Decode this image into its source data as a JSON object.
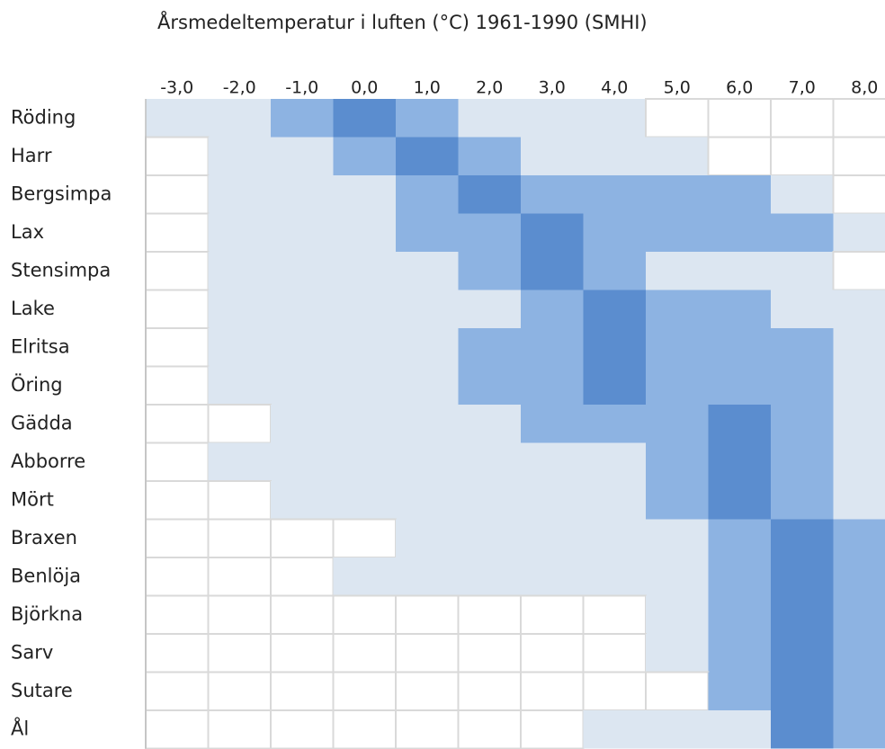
{
  "chart_data": {
    "type": "heatmap",
    "title": "Årsmedeltemperatur i luften (°C) 1961-1990 (SMHI)",
    "categories": [
      "-3,0",
      "-2,0",
      "-1,0",
      "0,0",
      "1,0",
      "2,0",
      "3,0",
      "4,0",
      "5,0",
      "6,0",
      "7,0",
      "8,0"
    ],
    "rows": [
      "Röding",
      "Harr",
      "Bergsimpa",
      "Lax",
      "Stensimpa",
      "Lake",
      "Elritsa",
      "Öring",
      "Gädda",
      "Abborre",
      "Mört",
      "Braxen",
      "Benlöja",
      "Björkna",
      "Sarv",
      "Sutare",
      "Ål"
    ],
    "colors": [
      "#ffffff",
      "#dce6f1",
      "#8db3e2",
      "#5b8dcf"
    ],
    "values": [
      [
        1,
        1,
        2,
        3,
        2,
        1,
        1,
        1,
        0,
        0,
        0,
        0
      ],
      [
        0,
        1,
        1,
        2,
        3,
        2,
        1,
        1,
        1,
        0,
        0,
        0
      ],
      [
        0,
        1,
        1,
        1,
        2,
        3,
        2,
        2,
        2,
        2,
        1,
        0
      ],
      [
        0,
        1,
        1,
        1,
        2,
        2,
        3,
        2,
        2,
        2,
        2,
        1
      ],
      [
        0,
        1,
        1,
        1,
        1,
        2,
        3,
        2,
        1,
        1,
        1,
        0
      ],
      [
        0,
        1,
        1,
        1,
        1,
        1,
        2,
        3,
        2,
        2,
        1,
        1
      ],
      [
        0,
        1,
        1,
        1,
        1,
        2,
        2,
        3,
        2,
        2,
        2,
        1
      ],
      [
        0,
        1,
        1,
        1,
        1,
        2,
        2,
        3,
        2,
        2,
        2,
        1
      ],
      [
        0,
        0,
        1,
        1,
        1,
        1,
        2,
        2,
        2,
        3,
        2,
        1
      ],
      [
        0,
        1,
        1,
        1,
        1,
        1,
        1,
        1,
        2,
        3,
        2,
        1
      ],
      [
        0,
        0,
        1,
        1,
        1,
        1,
        1,
        1,
        2,
        3,
        2,
        1
      ],
      [
        0,
        0,
        0,
        0,
        1,
        1,
        1,
        1,
        1,
        2,
        3,
        2
      ],
      [
        0,
        0,
        0,
        1,
        1,
        1,
        1,
        1,
        1,
        2,
        3,
        2
      ],
      [
        0,
        0,
        0,
        0,
        0,
        0,
        0,
        0,
        1,
        2,
        3,
        2
      ],
      [
        0,
        0,
        0,
        0,
        0,
        0,
        0,
        0,
        1,
        2,
        3,
        2
      ],
      [
        0,
        0,
        0,
        0,
        0,
        0,
        0,
        0,
        0,
        2,
        3,
        2
      ],
      [
        0,
        0,
        0,
        0,
        0,
        0,
        0,
        1,
        1,
        1,
        3,
        2
      ]
    ]
  }
}
